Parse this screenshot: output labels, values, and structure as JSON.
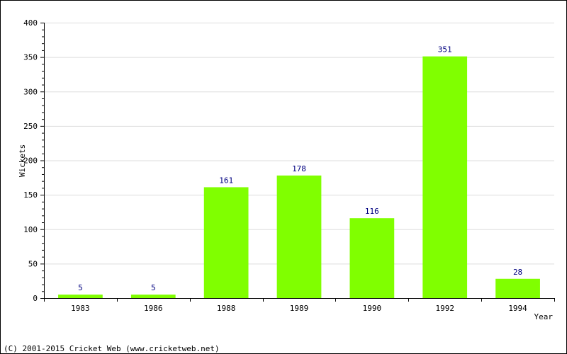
{
  "chart_data": {
    "type": "bar",
    "categories": [
      "1983",
      "1986",
      "1988",
      "1989",
      "1990",
      "1992",
      "1994"
    ],
    "values": [
      5,
      5,
      161,
      178,
      116,
      351,
      28
    ],
    "title": "",
    "xlabel": "Year",
    "ylabel": "Wickets",
    "ylim": [
      0,
      400
    ],
    "yticks": [
      0,
      50,
      100,
      150,
      200,
      250,
      300,
      350,
      400
    ],
    "grid": true,
    "bar_color": "#80ff00",
    "label_color": "#000080",
    "grid_color": "#dddddd"
  },
  "footer": {
    "copyright": "(C) 2001-2015 Cricket Web (www.cricketweb.net)"
  }
}
